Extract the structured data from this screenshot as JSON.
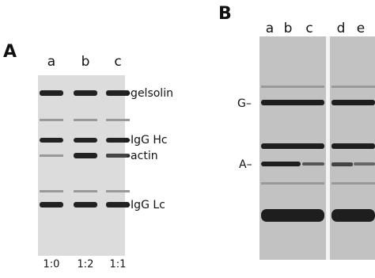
{
  "panel_a": {
    "label": "A",
    "lanes": [
      "a",
      "b",
      "c"
    ],
    "bands": [
      "-gelsolin",
      "-IgG Hc",
      "-actin",
      "-IgG Lc"
    ],
    "ratios": [
      "1:0",
      "1:2",
      "1:1"
    ]
  },
  "panel_b": {
    "label": "B",
    "lanes": [
      "a",
      "b",
      "c",
      "d",
      "e"
    ],
    "markers": [
      "G–",
      "A–"
    ]
  }
}
